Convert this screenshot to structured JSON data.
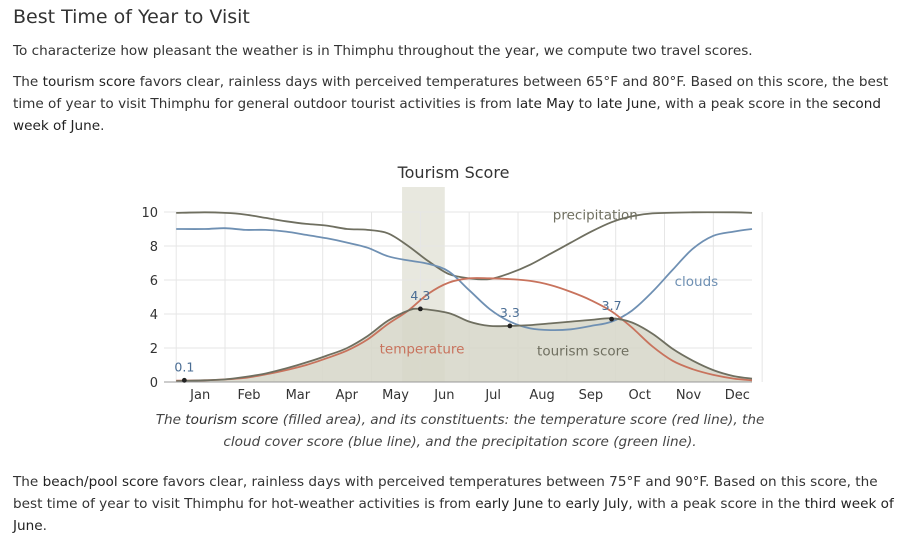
{
  "heading": "Best Time of Year to Visit",
  "intro": "To characterize how pleasant the weather is in Thimphu throughout the year, we compute two travel scores.",
  "tourism_para": {
    "t1": "The ",
    "score_name": "tourism score",
    "t2": " favors clear, rainless days with perceived temperatures between 65°F and 80°F. Based on this score, the best time of year to visit Thimphu for general outdoor tourist activities is from ",
    "start": "late May",
    "t3": " to ",
    "end": "late June",
    "t4": ", with a peak score in the ",
    "peak": "second week of June",
    "t5": "."
  },
  "beach_para": {
    "t1": "The ",
    "score_name": "beach/pool score",
    "t2": " favors clear, rainless days with perceived temperatures between 75°F and 90°F. Based on this score, the best time of year to visit Thimphu for hot-weather activities is from ",
    "start": "early June",
    "t3": " to ",
    "end": "early July",
    "t4": ", with a peak score in the ",
    "peak": "third week of June",
    "t5": "."
  },
  "caption": {
    "t1": "The ",
    "score_name": "tourism score",
    "t2": " (filled area), and its constituents: the temperature score (red line), the cloud cover score (blue line), and the precipitation score (green line)."
  },
  "chart_data": {
    "type": "area",
    "title": "Tourism Score",
    "categories": [
      "Jan",
      "Feb",
      "Mar",
      "Apr",
      "May",
      "Jun",
      "Jul",
      "Aug",
      "Sep",
      "Oct",
      "Nov",
      "Dec"
    ],
    "ylim": [
      0,
      10
    ],
    "yticks": [
      0,
      2,
      4,
      6,
      8,
      10
    ],
    "grid": true,
    "highlight_band": [
      5.85,
      6.9
    ],
    "colors": {
      "tourism": "#6f6f60",
      "tourism_fill": "#d6d6c8",
      "temperature": "#c8735d",
      "clouds": "#6f90b3",
      "precipitation": "#6f6f60",
      "highlight": "#e8e8df",
      "annotation": "#4a6d94"
    },
    "series": [
      {
        "name": "precipitation",
        "key": "precipitation",
        "points": [
          [
            0.3,
            9.95
          ],
          [
            1,
            9.98
          ],
          [
            1.5,
            9.95
          ],
          [
            2,
            9.85
          ],
          [
            2.5,
            9.65
          ],
          [
            3,
            9.45
          ],
          [
            3.5,
            9.3
          ],
          [
            4,
            9.2
          ],
          [
            4.5,
            9.0
          ],
          [
            5,
            8.95
          ],
          [
            5.5,
            8.75
          ],
          [
            6,
            8.0
          ],
          [
            6.5,
            7.1
          ],
          [
            7,
            6.35
          ],
          [
            7.5,
            6.1
          ],
          [
            8,
            6.05
          ],
          [
            8.5,
            6.4
          ],
          [
            9,
            6.9
          ],
          [
            9.5,
            7.55
          ],
          [
            10,
            8.2
          ],
          [
            10.5,
            8.85
          ],
          [
            11,
            9.4
          ],
          [
            11.5,
            9.75
          ],
          [
            12,
            9.92
          ],
          [
            13,
            9.98
          ],
          [
            14,
            9.98
          ],
          [
            14.45,
            9.95
          ]
        ]
      },
      {
        "name": "clouds",
        "key": "clouds",
        "points": [
          [
            0.3,
            9.0
          ],
          [
            1,
            9.0
          ],
          [
            1.5,
            9.05
          ],
          [
            2,
            8.95
          ],
          [
            2.5,
            8.95
          ],
          [
            3,
            8.85
          ],
          [
            3.5,
            8.65
          ],
          [
            4,
            8.45
          ],
          [
            4.5,
            8.2
          ],
          [
            5,
            7.9
          ],
          [
            5.5,
            7.4
          ],
          [
            6,
            7.15
          ],
          [
            6.5,
            6.95
          ],
          [
            7,
            6.5
          ],
          [
            7.5,
            5.4
          ],
          [
            8,
            4.3
          ],
          [
            8.5,
            3.55
          ],
          [
            9,
            3.15
          ],
          [
            9.5,
            3.05
          ],
          [
            10,
            3.1
          ],
          [
            10.5,
            3.3
          ],
          [
            11,
            3.55
          ],
          [
            11.5,
            4.2
          ],
          [
            12,
            5.3
          ],
          [
            12.5,
            6.6
          ],
          [
            13,
            7.85
          ],
          [
            13.5,
            8.6
          ],
          [
            14,
            8.85
          ],
          [
            14.45,
            9.0
          ]
        ]
      },
      {
        "name": "temperature",
        "key": "temperature",
        "points": [
          [
            0.3,
            0.08
          ],
          [
            1,
            0.1
          ],
          [
            1.5,
            0.15
          ],
          [
            2,
            0.25
          ],
          [
            2.5,
            0.45
          ],
          [
            3,
            0.7
          ],
          [
            3.5,
            1.0
          ],
          [
            4,
            1.4
          ],
          [
            4.5,
            1.85
          ],
          [
            5,
            2.5
          ],
          [
            5.5,
            3.4
          ],
          [
            6,
            4.2
          ],
          [
            6.5,
            5.2
          ],
          [
            7,
            5.85
          ],
          [
            7.5,
            6.1
          ],
          [
            8,
            6.1
          ],
          [
            8.5,
            6.05
          ],
          [
            9,
            5.95
          ],
          [
            9.5,
            5.7
          ],
          [
            10,
            5.3
          ],
          [
            10.5,
            4.8
          ],
          [
            11,
            4.15
          ],
          [
            11.5,
            3.2
          ],
          [
            12,
            2.1
          ],
          [
            12.5,
            1.25
          ],
          [
            13,
            0.75
          ],
          [
            13.5,
            0.42
          ],
          [
            14,
            0.2
          ],
          [
            14.45,
            0.1
          ]
        ]
      },
      {
        "name": "tourism score",
        "key": "tourism",
        "points": [
          [
            0.3,
            0.05
          ],
          [
            1,
            0.1
          ],
          [
            1.5,
            0.15
          ],
          [
            2,
            0.3
          ],
          [
            2.5,
            0.5
          ],
          [
            3,
            0.8
          ],
          [
            3.5,
            1.15
          ],
          [
            4,
            1.55
          ],
          [
            4.5,
            2.0
          ],
          [
            5,
            2.7
          ],
          [
            5.5,
            3.6
          ],
          [
            6,
            4.2
          ],
          [
            6.3,
            4.3
          ],
          [
            7,
            4.05
          ],
          [
            7.5,
            3.55
          ],
          [
            8,
            3.3
          ],
          [
            8.5,
            3.3
          ],
          [
            9,
            3.35
          ],
          [
            9.5,
            3.45
          ],
          [
            10,
            3.55
          ],
          [
            10.5,
            3.65
          ],
          [
            11,
            3.75
          ],
          [
            11.5,
            3.5
          ],
          [
            12,
            2.85
          ],
          [
            12.5,
            1.95
          ],
          [
            13,
            1.25
          ],
          [
            13.5,
            0.7
          ],
          [
            14,
            0.35
          ],
          [
            14.45,
            0.2
          ]
        ]
      }
    ],
    "labels": [
      {
        "text": "precipitation",
        "series": "precipitation"
      },
      {
        "text": "clouds",
        "series": "clouds"
      },
      {
        "text": "temperature",
        "series": "temperature"
      },
      {
        "text": "tourism score",
        "series": "tourism"
      }
    ],
    "annotations": [
      {
        "x": 0.5,
        "y": 0.1,
        "text": "0.1"
      },
      {
        "x": 6.3,
        "y": 4.3,
        "text": "4.3"
      },
      {
        "x": 8.5,
        "y": 3.3,
        "text": "3.3"
      },
      {
        "x": 11.0,
        "y": 3.7,
        "text": "3.7"
      }
    ]
  }
}
